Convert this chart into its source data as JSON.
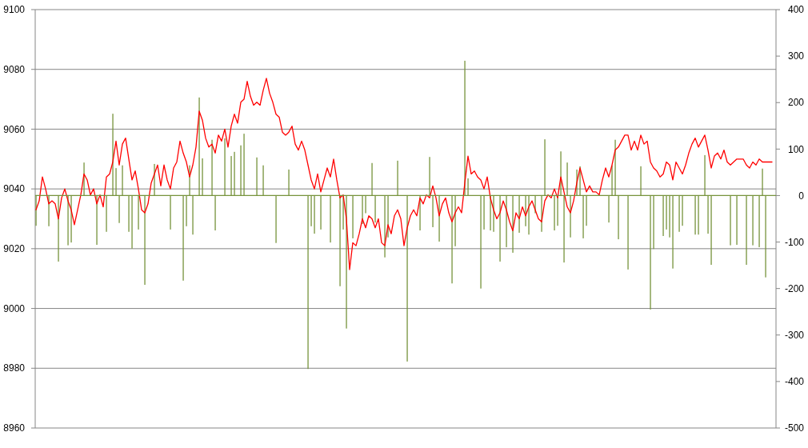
{
  "chart_data": {
    "type": "line",
    "categories": [
      null,
      null,
      null,
      null,
      null,
      null,
      null,
      null,
      null,
      null,
      null,
      null,
      null,
      null,
      null,
      null,
      null,
      null,
      null,
      null,
      null,
      null,
      null,
      null,
      null,
      null,
      null,
      null,
      null,
      null,
      null,
      null,
      null,
      null,
      null,
      null,
      null,
      null,
      null,
      null,
      null,
      null,
      null,
      null,
      null,
      null,
      null,
      null,
      null,
      null,
      null,
      null,
      null,
      null,
      null,
      null,
      null,
      null,
      null,
      null,
      null,
      null,
      null,
      null,
      null,
      null,
      null,
      null,
      null,
      null,
      null,
      null,
      null,
      null,
      null,
      null,
      null,
      null,
      null,
      null,
      null,
      null,
      null,
      null,
      null,
      null,
      null,
      null,
      null,
      null,
      null,
      null,
      null,
      null,
      null,
      null,
      null,
      null,
      null,
      null,
      null,
      null,
      null,
      null,
      null,
      null,
      null,
      null,
      null,
      null,
      null,
      null,
      null,
      null,
      null,
      null,
      null,
      null,
      null,
      null,
      null,
      null,
      null,
      null,
      null,
      null,
      null,
      null,
      null,
      null,
      null,
      null,
      null,
      null,
      null,
      null,
      null,
      null,
      null,
      null,
      null,
      null,
      null,
      null,
      null,
      null,
      null,
      null,
      null,
      null,
      null,
      null,
      null,
      null,
      null,
      null,
      null,
      null,
      null,
      null,
      null,
      null,
      null,
      null,
      null,
      null,
      null,
      null,
      null,
      null,
      null,
      null,
      null,
      null,
      null,
      null,
      null,
      null,
      null,
      null,
      null,
      null,
      null,
      null,
      null,
      null,
      null,
      null,
      null,
      null,
      null,
      null,
      null,
      null,
      null,
      null,
      null,
      null,
      null,
      null,
      null,
      null,
      null,
      null,
      null,
      null,
      null,
      null,
      null,
      null,
      null,
      null,
      null,
      null,
      null,
      null,
      null,
      null,
      null,
      null,
      null,
      null,
      null,
      null,
      null,
      null,
      null,
      null,
      null,
      null,
      null
    ],
    "series": [
      {
        "type": "bar",
        "axis": "y2",
        "color": "#77933c",
        "values": [
          -65,
          null,
          null,
          null,
          -66,
          null,
          null,
          -142,
          null,
          null,
          -107,
          -101,
          null,
          null,
          null,
          71,
          null,
          null,
          null,
          -106,
          null,
          null,
          -78,
          null,
          176,
          59,
          -59,
          65,
          null,
          -78,
          -114,
          null,
          -73,
          null,
          -192,
          null,
          null,
          68,
          null,
          null,
          null,
          null,
          -73,
          null,
          null,
          null,
          -183,
          -66,
          65,
          -84,
          null,
          211,
          80,
          null,
          null,
          120,
          -75,
          null,
          null,
          123,
          null,
          85,
          94,
          null,
          108,
          133,
          null,
          null,
          null,
          82,
          null,
          65,
          null,
          null,
          null,
          -102,
          null,
          null,
          null,
          56,
          null,
          null,
          null,
          null,
          null,
          -373,
          -66,
          -82,
          null,
          -73,
          null,
          null,
          -101,
          null,
          null,
          -195,
          -73,
          -286,
          null,
          -92,
          null,
          null,
          -61,
          -38,
          null,
          70,
          -58,
          null,
          null,
          -133,
          -90,
          null,
          null,
          75,
          null,
          null,
          -357,
          null,
          null,
          null,
          -75,
          null,
          null,
          83,
          -68,
          null,
          -99,
          null,
          null,
          null,
          -189,
          -109,
          null,
          null,
          290,
          37,
          null,
          null,
          null,
          -200,
          -73,
          null,
          -75,
          -78,
          null,
          -142,
          null,
          -111,
          null,
          -123,
          null,
          -80,
          null,
          -66,
          -84,
          null,
          -38,
          null,
          -78,
          121,
          null,
          null,
          -75,
          -65,
          95,
          -144,
          71,
          -90,
          null,
          56,
          63,
          -92,
          -65,
          null,
          null,
          null,
          null,
          null,
          null,
          -58,
          65,
          120,
          -94,
          null,
          null,
          -159,
          null,
          null,
          null,
          63,
          null,
          null,
          -245,
          -115,
          null,
          null,
          -87,
          -73,
          -90,
          -157,
          null,
          -78,
          -65,
          null,
          null,
          null,
          -84,
          -84,
          null,
          87,
          -82,
          -149,
          null,
          null,
          null,
          null,
          null,
          -107,
          null,
          -106,
          null,
          null,
          -149,
          null,
          -107,
          null,
          -111,
          58,
          -176,
          null,
          null
        ]
      },
      {
        "color": "#ff0000",
        "values": [
          9033,
          9036,
          9044,
          9040,
          9035,
          9036,
          9035,
          9030,
          9037,
          9040,
          9036,
          9033,
          9028,
          9033,
          9038,
          9045,
          9043,
          9038,
          9040,
          9035,
          9038,
          9034,
          9044,
          9045,
          9049,
          9056,
          9048,
          9055,
          9057,
          9050,
          9043,
          9046,
          9040,
          9033,
          9032,
          9035,
          9042,
          9045,
          9048,
          9041,
          9048,
          9043,
          9040,
          9047,
          9049,
          9056,
          9052,
          9049,
          9044,
          9048,
          9054,
          9066,
          9063,
          9057,
          9054,
          9055,
          9052,
          9058,
          9056,
          9060,
          9054,
          9061,
          9065,
          9062,
          9069,
          9070,
          9076,
          9071,
          9068,
          9069,
          9068,
          9073,
          9077,
          9072,
          9069,
          9065,
          9064,
          9059,
          9058,
          9059,
          9061,
          9055,
          9053,
          9056,
          9053,
          9048,
          9043,
          9040,
          9045,
          9039,
          9043,
          9047,
          9044,
          9050,
          9043,
          9037,
          9038,
          9030,
          9013,
          9022,
          9021,
          9025,
          9030,
          9027,
          9031,
          9030,
          9027,
          9030,
          9022,
          9021,
          9028,
          9025,
          9031,
          9033,
          9030,
          9021,
          9027,
          9031,
          9033,
          9031,
          9037,
          9035,
          9038,
          9037,
          9041,
          9037,
          9031,
          9035,
          9037,
          9032,
          9029,
          9032,
          9034,
          9032,
          9042,
          9051,
          9045,
          9046,
          9044,
          9043,
          9040,
          9044,
          9037,
          9033,
          9030,
          9032,
          9036,
          9033,
          9029,
          9026,
          9032,
          9030,
          9034,
          9031,
          9034,
          9036,
          9033,
          9030,
          9029,
          9036,
          9038,
          9037,
          9040,
          9037,
          9044,
          9039,
          9034,
          9032,
          9036,
          9042,
          9047,
          9043,
          9039,
          9041,
          9039,
          9039,
          9038,
          9043,
          9047,
          9044,
          9048,
          9053,
          9054,
          9056,
          9058,
          9058,
          9053,
          9056,
          9053,
          9058,
          9055,
          9056,
          9049,
          9047,
          9046,
          9044,
          9045,
          9049,
          9048,
          9043,
          9049,
          9047,
          9045,
          9048,
          9052,
          9055,
          9057,
          9054,
          9056,
          9058,
          9053,
          9047,
          9051,
          9052,
          9050,
          9053,
          9049,
          9048,
          9049,
          9050,
          9050,
          9050,
          9048,
          9047,
          9049,
          9048,
          9050,
          9049,
          9049,
          9049,
          9049
        ]
      }
    ],
    "ylim": [
      8960,
      9100
    ],
    "yticks": [
      8960,
      8980,
      9000,
      9020,
      9040,
      9060,
      9080,
      9100
    ],
    "y2lim": [
      -500,
      400
    ],
    "y2ticks": [
      -500,
      -400,
      -300,
      -200,
      -100,
      0,
      100,
      200,
      300,
      400
    ],
    "ref_lines": [
      {
        "axis": "y2",
        "value": 0,
        "color": "#77933c"
      }
    ],
    "grid": "y"
  }
}
